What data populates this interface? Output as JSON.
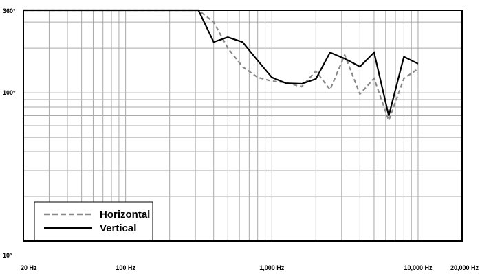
{
  "chart_data": {
    "type": "line",
    "title": "",
    "xlabel": "",
    "ylabel": "",
    "x_scale": "log",
    "y_scale": "log",
    "xlim": [
      20,
      20000
    ],
    "ylim": [
      10,
      360
    ],
    "grid": true,
    "legend_position": "bottom-left",
    "x_tick_labels": [
      {
        "value": 20,
        "label": "20 Hz"
      },
      {
        "value": 100,
        "label": "100 Hz"
      },
      {
        "value": 1000,
        "label": "1,000 Hz"
      },
      {
        "value": 10000,
        "label": "10,000 Hz"
      },
      {
        "value": 20000,
        "label": "20,000 Hz"
      }
    ],
    "y_tick_labels": [
      {
        "value": 10,
        "label": "10°"
      },
      {
        "value": 100,
        "label": "100°"
      },
      {
        "value": 360,
        "label": "360°"
      }
    ],
    "x_grid_values": [
      20,
      30,
      40,
      50,
      60,
      70,
      80,
      90,
      100,
      200,
      300,
      400,
      500,
      600,
      700,
      800,
      900,
      1000,
      2000,
      3000,
      4000,
      5000,
      6000,
      7000,
      8000,
      9000,
      10000,
      20000
    ],
    "y_grid_values": [
      10,
      20,
      30,
      40,
      50,
      60,
      70,
      80,
      90,
      100,
      200,
      300,
      360
    ],
    "series": [
      {
        "name": "Horizontal",
        "color": "#888888",
        "dash": "dashed",
        "x": [
          20,
          315,
          400,
          500,
          630,
          800,
          1000,
          1250,
          1600,
          2000,
          2500,
          3150,
          4000,
          5000,
          6300,
          8000,
          10000
        ],
        "y": [
          360,
          360,
          300,
          200,
          150,
          127,
          120,
          117,
          110,
          140,
          105,
          180,
          98,
          125,
          65,
          125,
          145
        ]
      },
      {
        "name": "Vertical",
        "color": "#000000",
        "dash": "solid",
        "x": [
          20,
          315,
          400,
          500,
          630,
          800,
          1000,
          1250,
          1600,
          2000,
          2500,
          3150,
          4000,
          5000,
          6300,
          8000,
          10000
        ],
        "y": [
          360,
          360,
          220,
          237,
          220,
          165,
          127,
          116,
          115,
          124,
          187,
          170,
          150,
          187,
          70,
          175,
          157
        ]
      }
    ]
  }
}
